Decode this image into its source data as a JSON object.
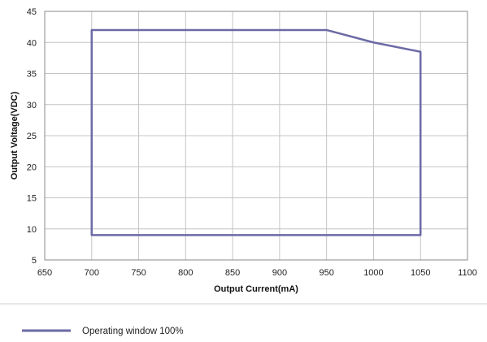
{
  "chart_data": {
    "type": "line",
    "title": "",
    "xlabel": "Output Current(mA)",
    "ylabel": "Output Voltage(VDC)",
    "xlim": [
      650,
      1100
    ],
    "ylim": [
      5,
      45
    ],
    "x_ticks": [
      650,
      700,
      750,
      800,
      850,
      900,
      950,
      1000,
      1050,
      1100
    ],
    "y_ticks": [
      5,
      10,
      15,
      20,
      25,
      30,
      35,
      40,
      45
    ],
    "grid": true,
    "legend_position": "bottom-left",
    "series": [
      {
        "name": "Operating window 100%",
        "color": "#6b6aa6",
        "closed": true,
        "points": [
          {
            "x": 700,
            "y": 9
          },
          {
            "x": 700,
            "y": 42
          },
          {
            "x": 950,
            "y": 42
          },
          {
            "x": 1000,
            "y": 40
          },
          {
            "x": 1050,
            "y": 38.5
          },
          {
            "x": 1050,
            "y": 9
          }
        ]
      }
    ]
  }
}
